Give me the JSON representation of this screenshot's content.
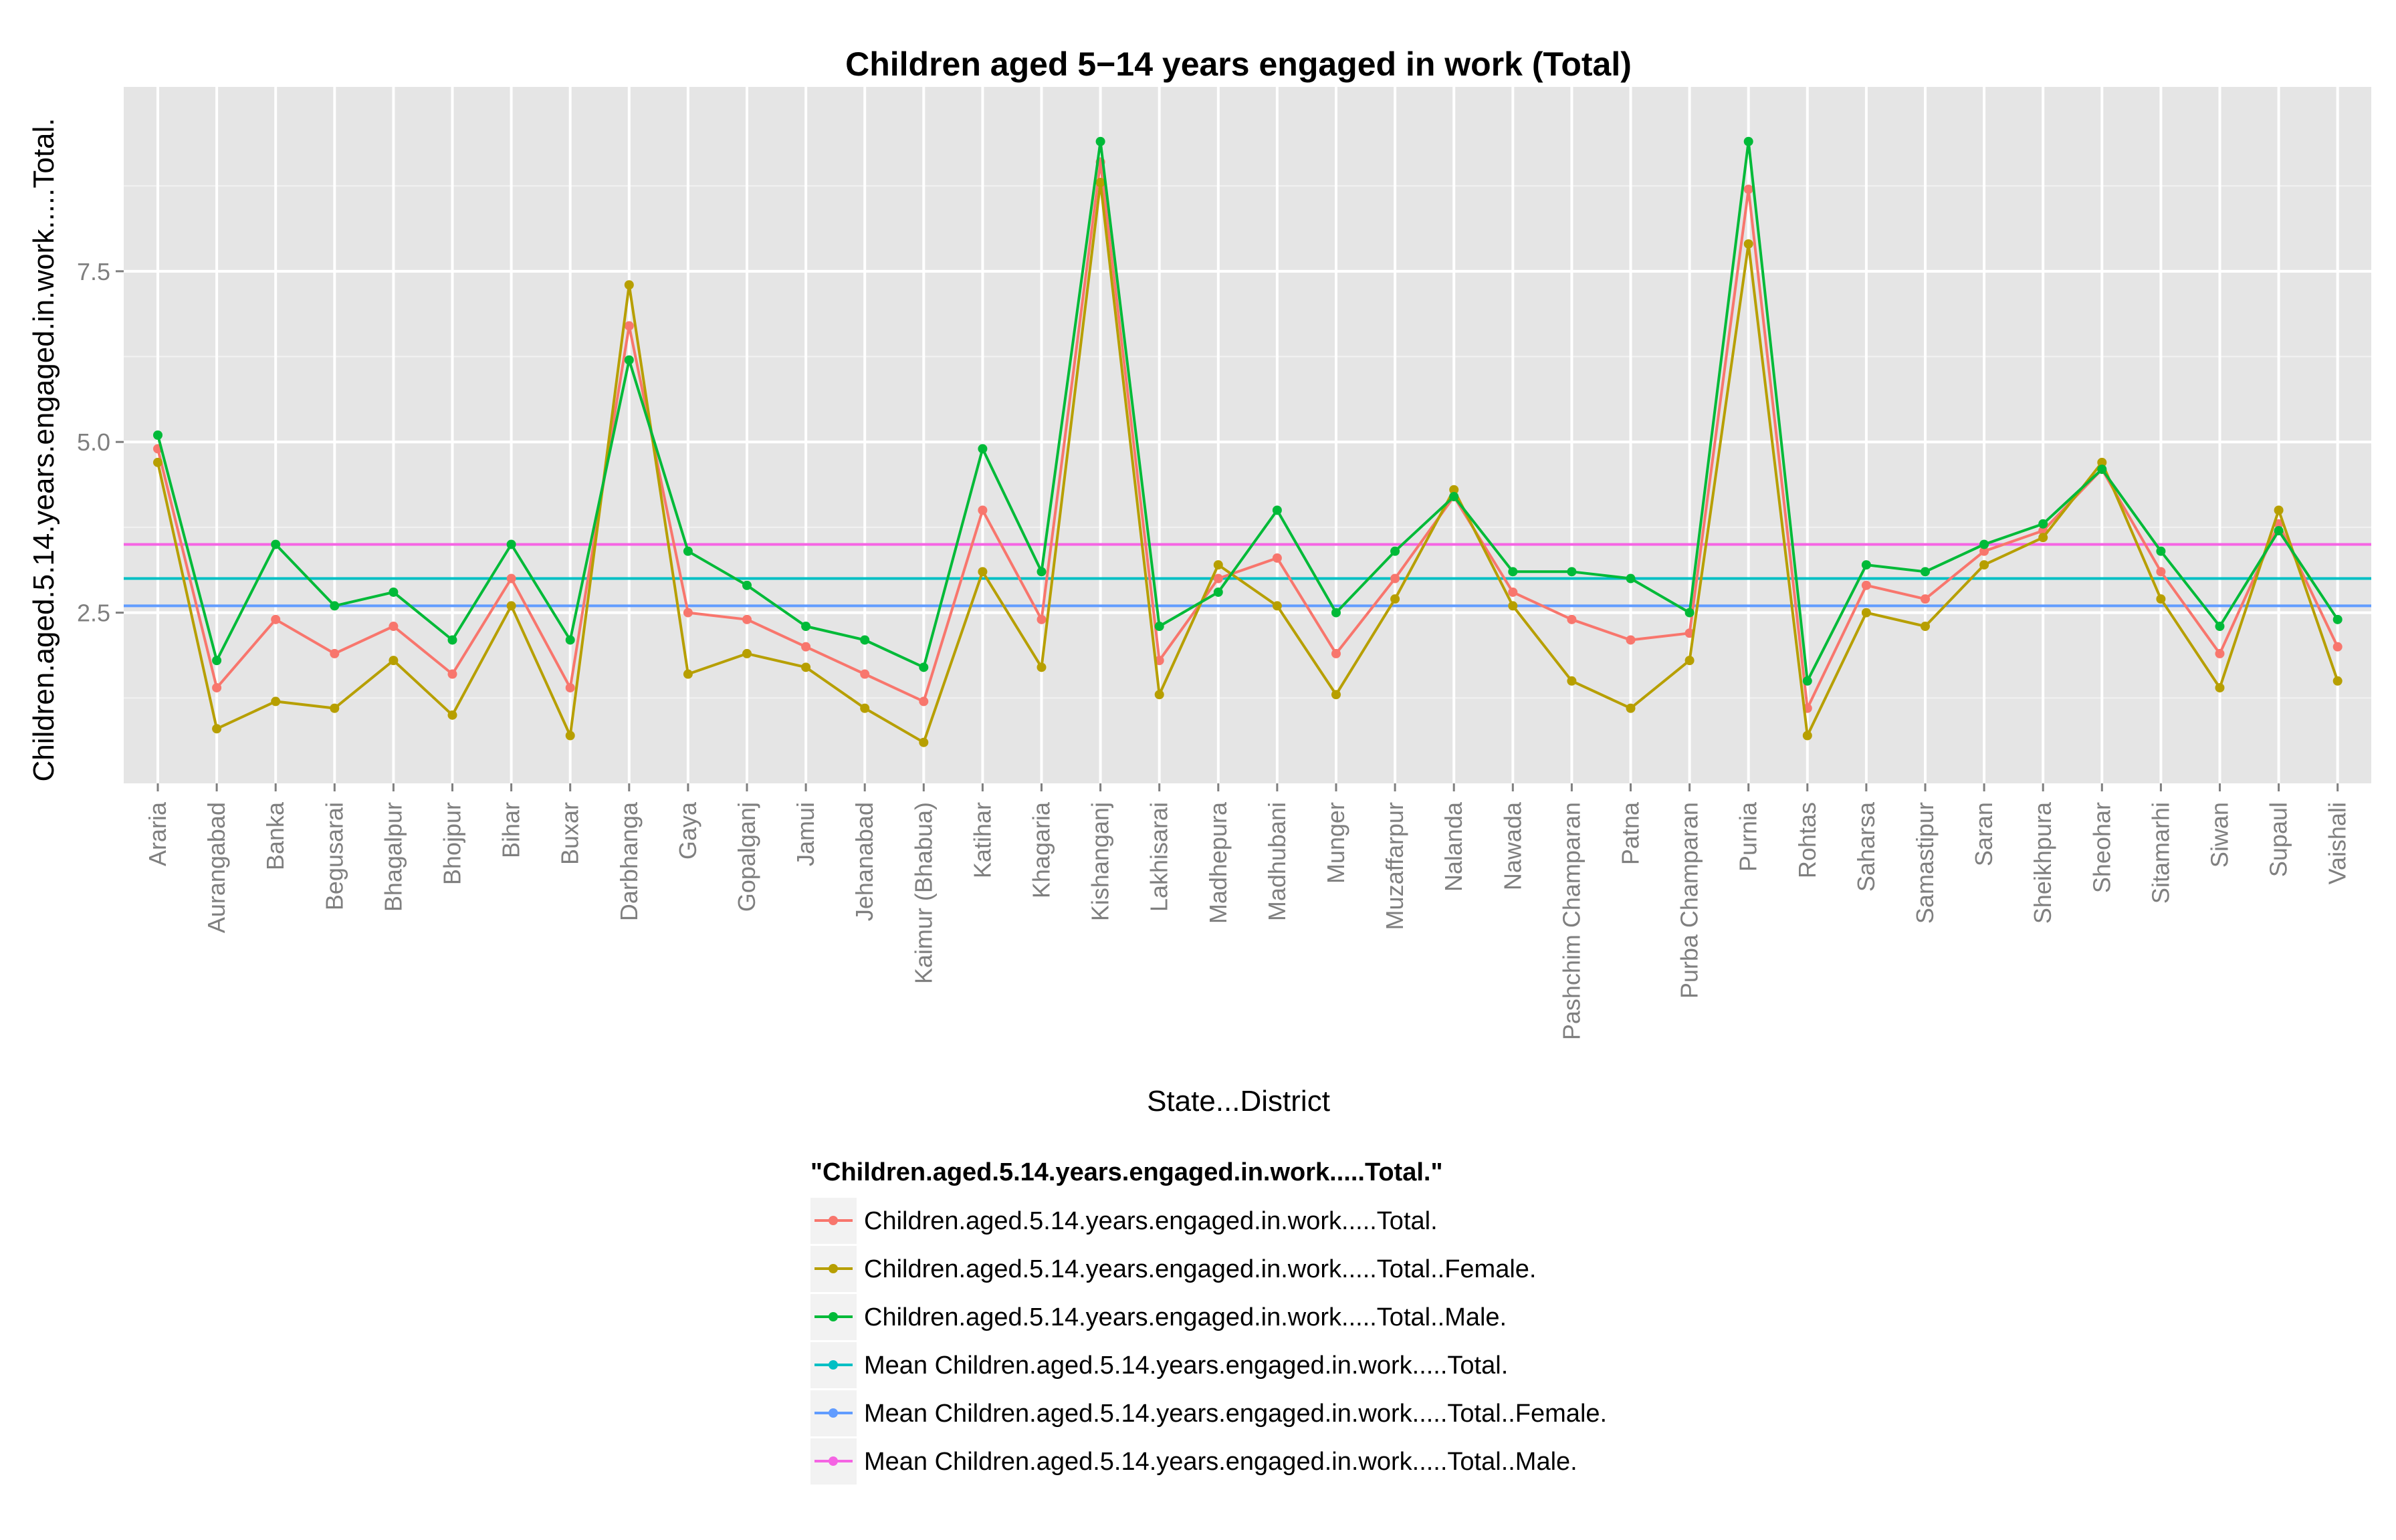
{
  "chart_data": {
    "type": "line",
    "title": "Children aged 5−14 years engaged in work (Total)",
    "xlabel": "State...District",
    "ylabel": "Children.aged.5.14.years.engaged.in.work.....Total.",
    "ylim": [
      0,
      10.2
    ],
    "yticks": [
      2.5,
      5.0,
      7.5
    ],
    "ytick_labels": [
      "2.5",
      "5.0",
      "7.5"
    ],
    "grid": true,
    "legend_position": "bottom",
    "legend_title": "\"Children.aged.5.14.years.engaged.in.work.....Total.\"",
    "categories": [
      "Araria",
      "Aurangabad",
      "Banka",
      "Begusarai",
      "Bhagalpur",
      "Bhojpur",
      "Bihar",
      "Buxar",
      "Darbhanga",
      "Gaya",
      "Gopalganj",
      "Jamui",
      "Jehanabad",
      "Kaimur (Bhabua)",
      "Katihar",
      "Khagaria",
      "Kishanganj",
      "Lakhisarai",
      "Madhepura",
      "Madhubani",
      "Munger",
      "Muzaffarpur",
      "Nalanda",
      "Nawada",
      "Pashchim Champaran",
      "Patna",
      "Purba Champaran",
      "Purnia",
      "Rohtas",
      "Saharsa",
      "Samastipur",
      "Saran",
      "Sheikhpura",
      "Sheohar",
      "Sitamarhi",
      "Siwan",
      "Supaul",
      "Vaishali"
    ],
    "series": [
      {
        "name": "Children.aged.5.14.years.engaged.in.work.....Total.",
        "color": "#f8766d",
        "values": [
          4.9,
          1.4,
          2.4,
          1.9,
          2.3,
          1.6,
          3.0,
          1.4,
          6.7,
          2.5,
          2.4,
          2.0,
          1.6,
          1.2,
          4.0,
          2.4,
          9.1,
          1.8,
          3.0,
          3.3,
          1.9,
          3.0,
          4.2,
          2.8,
          2.4,
          2.1,
          2.2,
          8.7,
          1.1,
          2.9,
          2.7,
          3.4,
          3.7,
          4.6,
          3.1,
          1.9,
          3.8,
          2.0
        ]
      },
      {
        "name": "Children.aged.5.14.years.engaged.in.work.....Total..Female.",
        "color": "#b79f00",
        "values": [
          4.7,
          0.8,
          1.2,
          1.1,
          1.8,
          1.0,
          2.6,
          0.7,
          7.3,
          1.6,
          1.9,
          1.7,
          1.1,
          0.6,
          3.1,
          1.7,
          8.8,
          1.3,
          3.2,
          2.6,
          1.3,
          2.7,
          4.3,
          2.6,
          1.5,
          1.1,
          1.8,
          7.9,
          0.7,
          2.5,
          2.3,
          3.2,
          3.6,
          4.7,
          2.7,
          1.4,
          4.0,
          1.5
        ]
      },
      {
        "name": "Children.aged.5.14.years.engaged.in.work.....Total..Male.",
        "color": "#00ba38",
        "values": [
          5.1,
          1.8,
          3.5,
          2.6,
          2.8,
          2.1,
          3.5,
          2.1,
          6.2,
          3.4,
          2.9,
          2.3,
          2.1,
          1.7,
          4.9,
          3.1,
          9.4,
          2.3,
          2.8,
          4.0,
          2.5,
          3.4,
          4.2,
          3.1,
          3.1,
          3.0,
          2.5,
          9.4,
          1.5,
          3.2,
          3.1,
          3.5,
          3.8,
          4.6,
          3.4,
          2.3,
          3.7,
          2.4
        ]
      }
    ],
    "reference_lines": [
      {
        "name": "Mean Children.aged.5.14.years.engaged.in.work.....Total.",
        "color": "#00bfc4",
        "value": 3.0
      },
      {
        "name": "Mean Children.aged.5.14.years.engaged.in.work.....Total..Female.",
        "color": "#619cff",
        "value": 2.6
      },
      {
        "name": "Mean Children.aged.5.14.years.engaged.in.work.....Total..Male.",
        "color": "#f564e3",
        "value": 3.5
      }
    ]
  }
}
